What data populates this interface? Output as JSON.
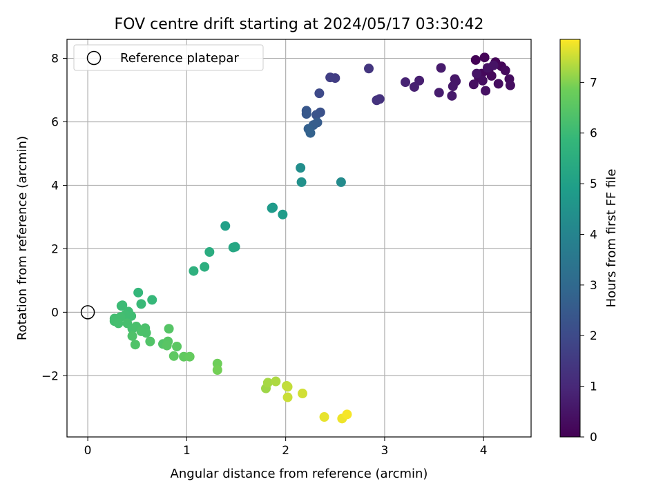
{
  "chart_data": {
    "type": "scatter",
    "title": "FOV centre drift starting at 2024/05/17 03:30:42",
    "xlabel": "Angular distance from reference (arcmin)",
    "ylabel": "Rotation from reference (arcmin)",
    "xlim": [
      -0.21,
      4.48
    ],
    "ylim": [
      -3.93,
      8.6
    ],
    "xticks": [
      0,
      1,
      2,
      3,
      4
    ],
    "yticks": [
      -2,
      0,
      2,
      4,
      6,
      8
    ],
    "ytick_labels": [
      "−2",
      "0",
      "2",
      "4",
      "6",
      "8"
    ],
    "grid": true,
    "legend": {
      "position": "top-left",
      "entries": [
        "Reference platepar"
      ]
    },
    "reference_point": {
      "x": 0,
      "y": 0
    },
    "colorbar": {
      "label": "Hours from first FF file",
      "range": [
        0,
        7.85
      ],
      "ticks": [
        0,
        1,
        2,
        3,
        4,
        5,
        6,
        7
      ],
      "colormap": "viridis"
    },
    "points": [
      {
        "x": 3.92,
        "y": 7.95,
        "c": 0.05
      },
      {
        "x": 4.01,
        "y": 8.03,
        "c": 0.08
      },
      {
        "x": 4.12,
        "y": 7.88,
        "c": 0.1
      },
      {
        "x": 4.18,
        "y": 7.75,
        "c": 0.12
      },
      {
        "x": 4.05,
        "y": 7.6,
        "c": 0.15
      },
      {
        "x": 3.98,
        "y": 7.52,
        "c": 0.18
      },
      {
        "x": 4.08,
        "y": 7.45,
        "c": 0.2
      },
      {
        "x": 3.95,
        "y": 7.4,
        "c": 0.22
      },
      {
        "x": 4.22,
        "y": 7.62,
        "c": 0.25
      },
      {
        "x": 4.26,
        "y": 7.35,
        "c": 0.28
      },
      {
        "x": 4.15,
        "y": 7.2,
        "c": 0.3
      },
      {
        "x": 4.27,
        "y": 7.15,
        "c": 0.32
      },
      {
        "x": 3.99,
        "y": 7.3,
        "c": 0.35
      },
      {
        "x": 3.9,
        "y": 7.18,
        "c": 0.38
      },
      {
        "x": 4.02,
        "y": 6.98,
        "c": 0.4
      },
      {
        "x": 4.04,
        "y": 7.7,
        "c": 0.42
      },
      {
        "x": 4.1,
        "y": 7.78,
        "c": 0.45
      },
      {
        "x": 3.93,
        "y": 7.52,
        "c": 0.48
      },
      {
        "x": 3.71,
        "y": 7.35,
        "c": 0.52
      },
      {
        "x": 3.72,
        "y": 7.28,
        "c": 0.55
      },
      {
        "x": 3.69,
        "y": 7.12,
        "c": 0.58
      },
      {
        "x": 3.68,
        "y": 6.82,
        "c": 0.62
      },
      {
        "x": 3.57,
        "y": 7.7,
        "c": 0.65
      },
      {
        "x": 3.55,
        "y": 6.92,
        "c": 0.7
      },
      {
        "x": 3.35,
        "y": 7.3,
        "c": 0.75
      },
      {
        "x": 3.3,
        "y": 7.1,
        "c": 0.8
      },
      {
        "x": 3.21,
        "y": 7.25,
        "c": 0.85
      },
      {
        "x": 2.95,
        "y": 6.72,
        "c": 1.25
      },
      {
        "x": 2.92,
        "y": 6.68,
        "c": 1.3
      },
      {
        "x": 2.84,
        "y": 7.68,
        "c": 1.4
      },
      {
        "x": 2.5,
        "y": 7.38,
        "c": 1.6
      },
      {
        "x": 2.45,
        "y": 7.4,
        "c": 1.65
      },
      {
        "x": 2.34,
        "y": 6.9,
        "c": 2.0
      },
      {
        "x": 2.35,
        "y": 6.3,
        "c": 2.2
      },
      {
        "x": 2.31,
        "y": 6.22,
        "c": 2.3
      },
      {
        "x": 2.21,
        "y": 6.35,
        "c": 2.4
      },
      {
        "x": 2.21,
        "y": 6.25,
        "c": 2.45
      },
      {
        "x": 2.32,
        "y": 5.98,
        "c": 2.55
      },
      {
        "x": 2.28,
        "y": 5.9,
        "c": 2.6
      },
      {
        "x": 2.23,
        "y": 5.78,
        "c": 2.7
      },
      {
        "x": 2.25,
        "y": 5.65,
        "c": 2.75
      },
      {
        "x": 2.56,
        "y": 4.1,
        "c": 4.25
      },
      {
        "x": 2.15,
        "y": 4.55,
        "c": 4.35
      },
      {
        "x": 2.16,
        "y": 4.1,
        "c": 4.45
      },
      {
        "x": 1.87,
        "y": 3.3,
        "c": 4.75
      },
      {
        "x": 1.86,
        "y": 3.28,
        "c": 4.8
      },
      {
        "x": 1.97,
        "y": 3.08,
        "c": 4.85
      },
      {
        "x": 1.39,
        "y": 2.72,
        "c": 5.0
      },
      {
        "x": 1.49,
        "y": 2.06,
        "c": 5.2
      },
      {
        "x": 1.47,
        "y": 2.04,
        "c": 5.25
      },
      {
        "x": 1.23,
        "y": 1.9,
        "c": 5.45
      },
      {
        "x": 1.18,
        "y": 1.43,
        "c": 5.55
      },
      {
        "x": 1.07,
        "y": 1.3,
        "c": 5.6
      },
      {
        "x": 0.51,
        "y": 0.62,
        "c": 5.85
      },
      {
        "x": 0.65,
        "y": 0.39,
        "c": 5.9
      },
      {
        "x": 0.54,
        "y": 0.26,
        "c": 5.95
      },
      {
        "x": 0.35,
        "y": 0.22,
        "c": 6.0
      },
      {
        "x": 0.34,
        "y": 0.2,
        "c": 6.0
      },
      {
        "x": 0.41,
        "y": 0.02,
        "c": 6.05
      },
      {
        "x": 0.44,
        "y": -0.12,
        "c": 6.08
      },
      {
        "x": 0.38,
        "y": -0.08,
        "c": 6.1
      },
      {
        "x": 0.27,
        "y": -0.2,
        "c": 6.12
      },
      {
        "x": 0.33,
        "y": -0.15,
        "c": 6.15
      },
      {
        "x": 0.27,
        "y": -0.28,
        "c": 6.15
      },
      {
        "x": 0.31,
        "y": -0.35,
        "c": 6.18
      },
      {
        "x": 0.4,
        "y": -0.35,
        "c": 6.2
      },
      {
        "x": 0.45,
        "y": -0.52,
        "c": 6.22
      },
      {
        "x": 0.49,
        "y": -0.45,
        "c": 6.25
      },
      {
        "x": 0.58,
        "y": -0.5,
        "c": 6.28
      },
      {
        "x": 0.59,
        "y": -0.65,
        "c": 6.3
      },
      {
        "x": 0.54,
        "y": -0.6,
        "c": 6.3
      },
      {
        "x": 0.45,
        "y": -0.75,
        "c": 6.32
      },
      {
        "x": 0.48,
        "y": -1.02,
        "c": 6.35
      },
      {
        "x": 0.63,
        "y": -0.92,
        "c": 6.38
      },
      {
        "x": 0.76,
        "y": -1.0,
        "c": 6.4
      },
      {
        "x": 0.82,
        "y": -0.52,
        "c": 6.45
      },
      {
        "x": 0.81,
        "y": -0.92,
        "c": 6.48
      },
      {
        "x": 0.8,
        "y": -1.05,
        "c": 6.5
      },
      {
        "x": 0.9,
        "y": -1.08,
        "c": 6.55
      },
      {
        "x": 0.87,
        "y": -1.38,
        "c": 6.6
      },
      {
        "x": 0.97,
        "y": -1.4,
        "c": 6.65
      },
      {
        "x": 1.03,
        "y": -1.4,
        "c": 6.7
      },
      {
        "x": 1.31,
        "y": -1.62,
        "c": 6.85
      },
      {
        "x": 1.31,
        "y": -1.82,
        "c": 6.9
      },
      {
        "x": 1.8,
        "y": -2.4,
        "c": 7.2
      },
      {
        "x": 1.82,
        "y": -2.22,
        "c": 7.25
      },
      {
        "x": 1.9,
        "y": -2.18,
        "c": 7.3
      },
      {
        "x": 2.01,
        "y": -2.32,
        "c": 7.4
      },
      {
        "x": 2.02,
        "y": -2.35,
        "c": 7.45
      },
      {
        "x": 2.02,
        "y": -2.68,
        "c": 7.5
      },
      {
        "x": 2.17,
        "y": -2.56,
        "c": 7.55
      },
      {
        "x": 2.39,
        "y": -3.3,
        "c": 7.7
      },
      {
        "x": 2.57,
        "y": -3.35,
        "c": 7.75
      },
      {
        "x": 2.62,
        "y": -3.22,
        "c": 7.8
      }
    ]
  }
}
